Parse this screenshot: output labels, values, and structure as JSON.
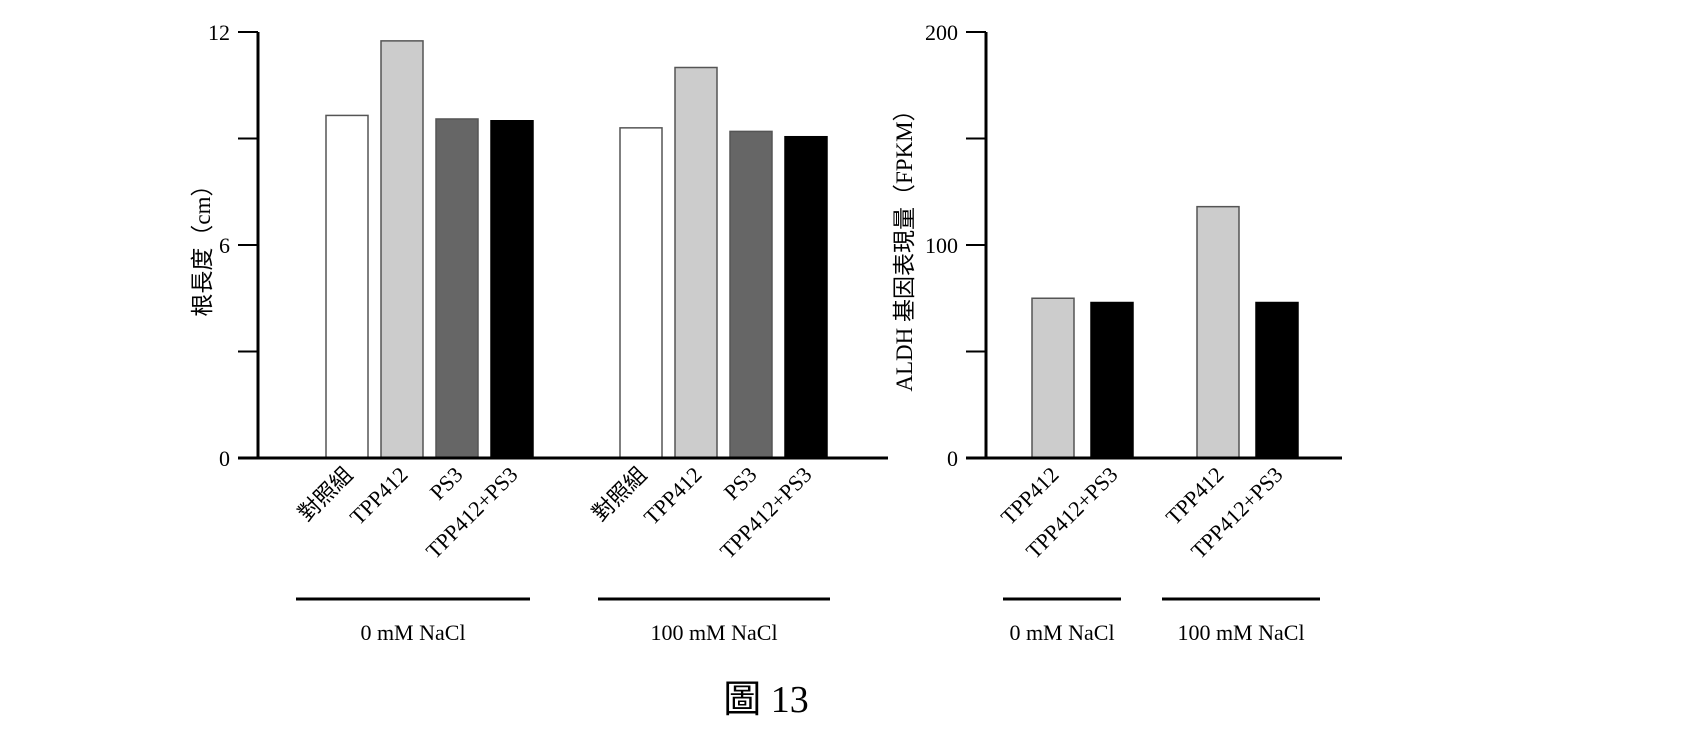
{
  "figure": {
    "caption": "圖 13"
  },
  "chart_data": [
    {
      "type": "bar",
      "ylabel": "根長度（cm）",
      "ylim": [
        0,
        12
      ],
      "yticks": [
        0,
        6,
        12
      ],
      "categories": [
        "對照組",
        "TPP412",
        "PS3",
        "TPP412+PS3"
      ],
      "groups": [
        {
          "label": "0 mM NaCl",
          "values": [
            9.65,
            11.75,
            9.55,
            9.5
          ]
        },
        {
          "label": "100 mM NaCl",
          "values": [
            9.3,
            11.0,
            9.2,
            9.05
          ]
        }
      ],
      "colors": [
        "#ffffff",
        "#cccccc",
        "#666666",
        "#000000"
      ]
    },
    {
      "type": "bar",
      "ylabel": "ALDH 基因表現量（FPKM）",
      "ylim": [
        0,
        200
      ],
      "yticks": [
        0,
        100,
        200
      ],
      "categories": [
        "TPP412",
        "TPP412+PS3"
      ],
      "groups": [
        {
          "label": "0 mM NaCl",
          "values": [
            75,
            73
          ]
        },
        {
          "label": "100 mM NaCl",
          "values": [
            118,
            73
          ]
        }
      ],
      "colors": [
        "#cccccc",
        "#000000"
      ]
    }
  ]
}
